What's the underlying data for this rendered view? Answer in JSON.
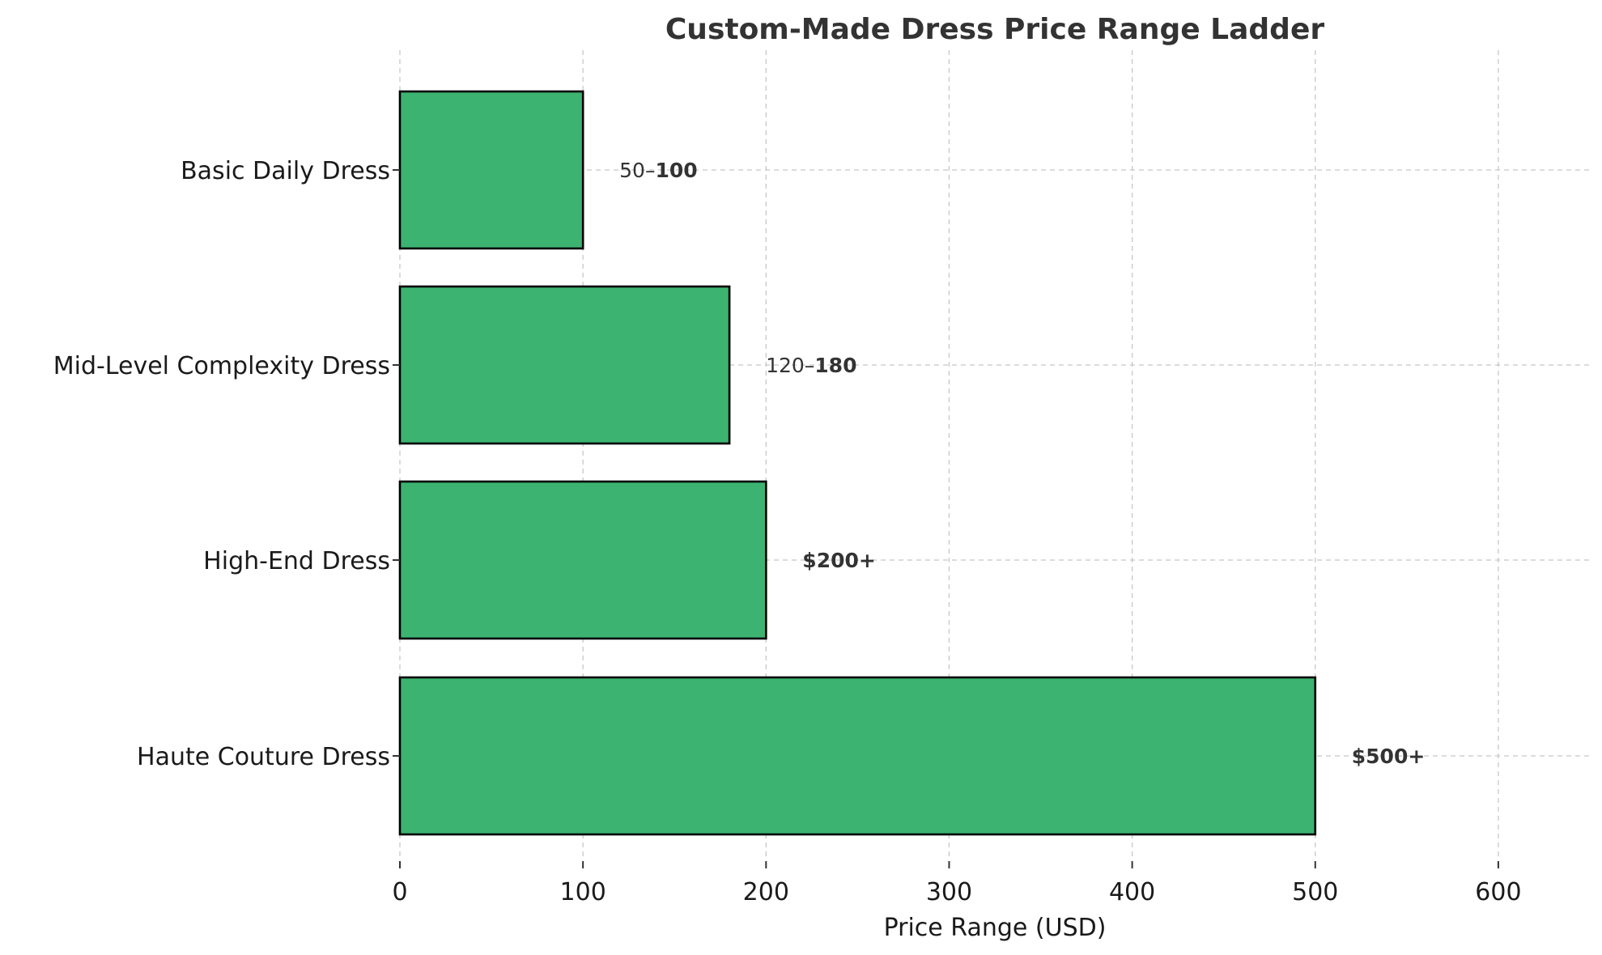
{
  "chart_data": {
    "type": "bar",
    "orientation": "horizontal",
    "title": "Custom-Made Dress Price Range Ladder",
    "xlabel": "Price Range (USD)",
    "ylabel": "",
    "xlim": [
      0,
      650
    ],
    "xticks": [
      0,
      100,
      200,
      300,
      400,
      500,
      600
    ],
    "grid": true,
    "bar_color": "#3cb371",
    "categories": [
      "Basic Daily Dress",
      "Mid-Level Complexity Dress",
      "High-End Dress",
      "Haute Couture Dress"
    ],
    "values": [
      100,
      180,
      200,
      500
    ],
    "labels": [
      {
        "plain": "50–",
        "bold": "100"
      },
      {
        "plain": "120–",
        "bold": "180"
      },
      {
        "plain": "",
        "bold": "$200+"
      },
      {
        "plain": "",
        "bold": "$500+"
      }
    ]
  }
}
